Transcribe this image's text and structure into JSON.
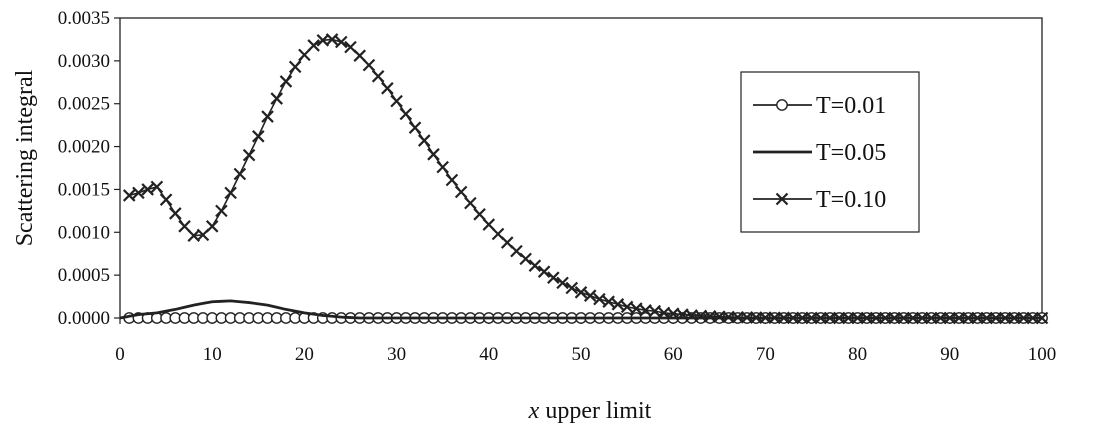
{
  "chart_data": {
    "type": "line",
    "title": "",
    "xlabel_var": "x",
    "xlabel_rest": " upper limit",
    "ylabel": "Scattering integral",
    "xlim": [
      0,
      100
    ],
    "ylim": [
      0,
      0.0035
    ],
    "x_ticks": [
      "0",
      "10",
      "20",
      "30",
      "40",
      "50",
      "60",
      "70",
      "80",
      "90",
      "100"
    ],
    "y_ticks": [
      "0.0000",
      "0.0005",
      "0.0010",
      "0.0015",
      "0.0020",
      "0.0025",
      "0.0030",
      "0.0035"
    ],
    "x_step": 1,
    "grid": false,
    "legend_position": "right",
    "series": [
      {
        "name": "T=0.01",
        "marker": "circle",
        "color": "#222222",
        "points": [
          [
            1,
            0.0
          ],
          [
            100,
            0.0
          ]
        ]
      },
      {
        "name": "T=0.05",
        "marker": "none",
        "color": "#222222",
        "points": [
          [
            0,
            0.0
          ],
          [
            2,
            4e-05
          ],
          [
            4,
            6e-05
          ],
          [
            6,
            0.0001
          ],
          [
            8,
            0.00015
          ],
          [
            10,
            0.00019
          ],
          [
            12,
            0.0002
          ],
          [
            14,
            0.00018
          ],
          [
            16,
            0.00015
          ],
          [
            18,
            0.0001
          ],
          [
            20,
            6e-05
          ],
          [
            22,
            3e-05
          ],
          [
            24,
            1e-05
          ],
          [
            26,
            0.0
          ],
          [
            100,
            0.0
          ]
        ]
      },
      {
        "name": "T=0.10",
        "marker": "x",
        "color": "#222222",
        "points": [
          [
            1,
            0.00143
          ],
          [
            2,
            0.00146
          ],
          [
            3,
            0.0015
          ],
          [
            4,
            0.00153
          ],
          [
            5,
            0.00138
          ],
          [
            6,
            0.00122
          ],
          [
            7,
            0.00107
          ],
          [
            8,
            0.00096
          ],
          [
            9,
            0.00097
          ],
          [
            10,
            0.00107
          ],
          [
            11,
            0.00125
          ],
          [
            12,
            0.00146
          ],
          [
            13,
            0.00168
          ],
          [
            14,
            0.0019
          ],
          [
            15,
            0.00212
          ],
          [
            16,
            0.00235
          ],
          [
            17,
            0.00256
          ],
          [
            18,
            0.00276
          ],
          [
            19,
            0.00293
          ],
          [
            20,
            0.00307
          ],
          [
            21,
            0.00318
          ],
          [
            22,
            0.00324
          ],
          [
            23,
            0.00325
          ],
          [
            24,
            0.00322
          ],
          [
            25,
            0.00316
          ],
          [
            26,
            0.00306
          ],
          [
            27,
            0.00295
          ],
          [
            28,
            0.00282
          ],
          [
            29,
            0.00268
          ],
          [
            30,
            0.00253
          ],
          [
            31,
            0.00238
          ],
          [
            32,
            0.00222
          ],
          [
            33,
            0.00207
          ],
          [
            34,
            0.00191
          ],
          [
            35,
            0.00176
          ],
          [
            36,
            0.00161
          ],
          [
            37,
            0.00147
          ],
          [
            38,
            0.00134
          ],
          [
            39,
            0.00121
          ],
          [
            40,
            0.00109
          ],
          [
            41,
            0.00098
          ],
          [
            42,
            0.00088
          ],
          [
            43,
            0.00078
          ],
          [
            44,
            0.00069
          ],
          [
            45,
            0.00061
          ],
          [
            46,
            0.00054
          ],
          [
            47,
            0.00047
          ],
          [
            48,
            0.00041
          ],
          [
            49,
            0.00035
          ],
          [
            50,
            0.0003
          ],
          [
            51,
            0.00026
          ],
          [
            52,
            0.00022
          ],
          [
            53,
            0.00019
          ],
          [
            54,
            0.00016
          ],
          [
            55,
            0.00013
          ],
          [
            56,
            0.00011
          ],
          [
            57,
            9e-05
          ],
          [
            58,
            8e-05
          ],
          [
            59,
            6e-05
          ],
          [
            60,
            5e-05
          ],
          [
            61,
            4e-05
          ],
          [
            62,
            3e-05
          ],
          [
            63,
            2.5e-05
          ],
          [
            64,
            2e-05
          ],
          [
            65,
            1.5e-05
          ],
          [
            66,
            1.2e-05
          ],
          [
            67,
            9e-06
          ],
          [
            68,
            7e-06
          ],
          [
            69,
            5e-06
          ],
          [
            70,
            4e-06
          ],
          [
            72,
            2e-06
          ],
          [
            74,
            1e-06
          ],
          [
            76,
            0.0
          ],
          [
            100,
            0.0
          ]
        ]
      }
    ]
  }
}
